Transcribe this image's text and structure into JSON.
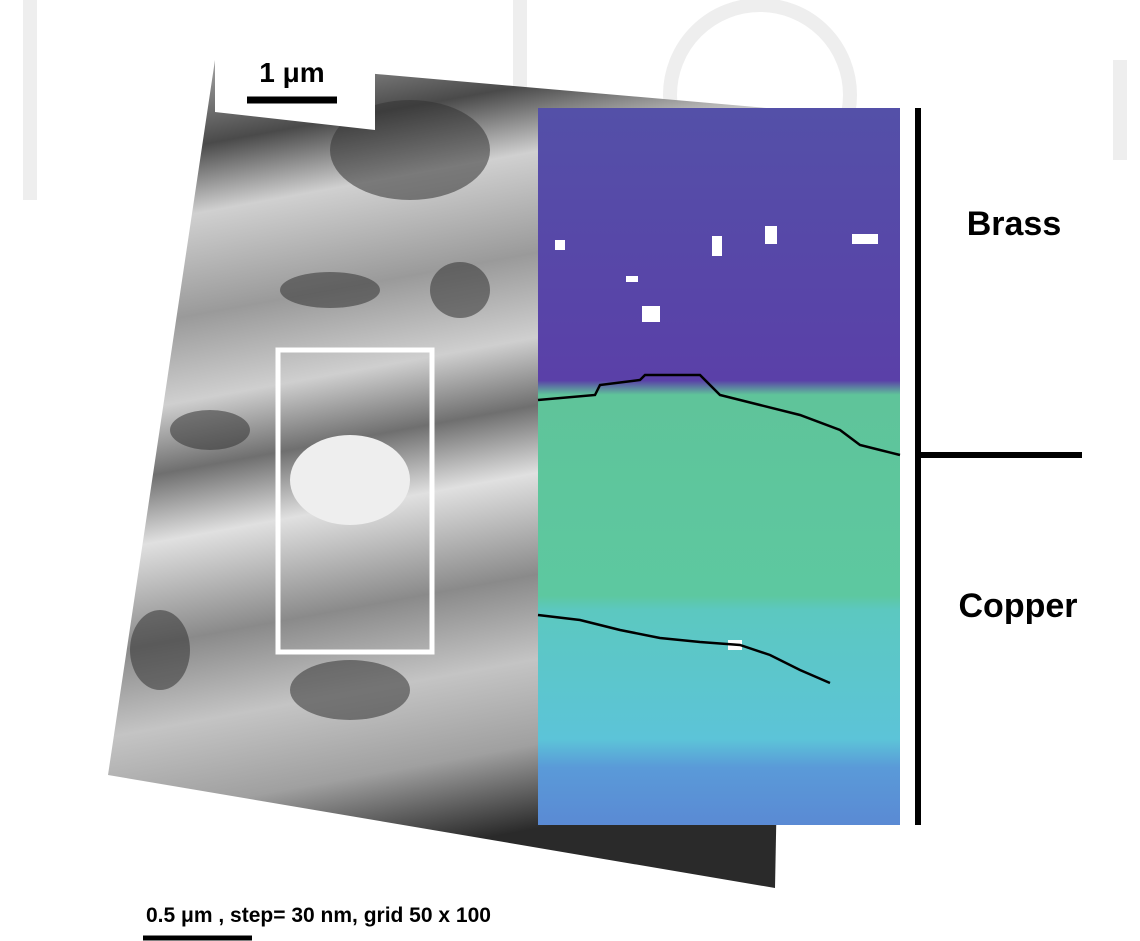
{
  "scale_bar": {
    "label": "1 μm"
  },
  "regions": [
    {
      "label": "Brass"
    },
    {
      "label": "Copper"
    }
  ],
  "caption": "0.5 μm , step= 30 nm, grid 50 x 100"
}
